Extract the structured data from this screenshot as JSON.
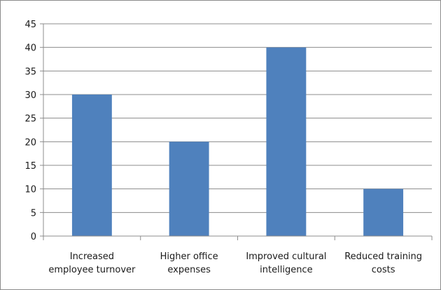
{
  "chart_data": {
    "type": "bar",
    "categories": [
      [
        "Increased",
        "employee turnover"
      ],
      [
        "Higher office",
        "expenses"
      ],
      [
        "Improved cultural",
        "intelligence"
      ],
      [
        "Reduced training",
        "costs"
      ]
    ],
    "values": [
      30,
      20,
      40,
      10
    ],
    "title": "",
    "xlabel": "",
    "ylabel": "",
    "ylim": [
      0,
      45
    ],
    "yticks": [
      0,
      5,
      10,
      15,
      20,
      25,
      30,
      35,
      40,
      45
    ],
    "grid": true,
    "legend": "none",
    "bar_color": "#4f81bd",
    "grid_color": "#8c8c8c",
    "axis_color": "#8c8c8c"
  }
}
